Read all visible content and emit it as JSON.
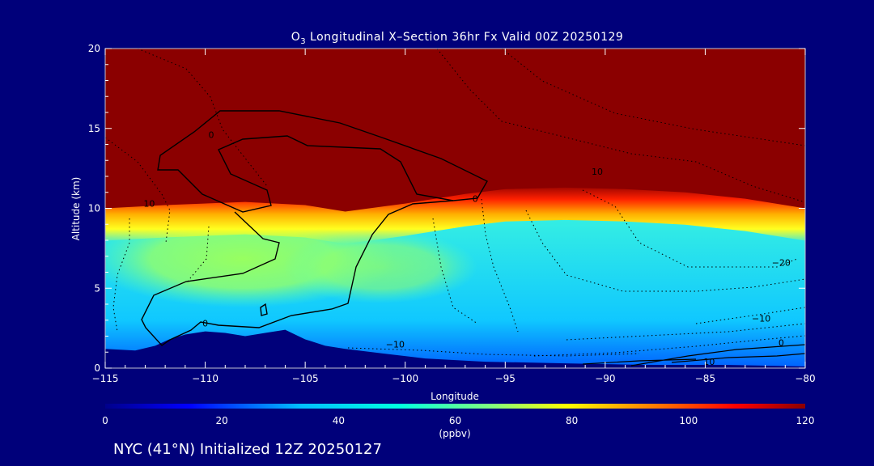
{
  "chart_data": {
    "type": "heatmap",
    "title_main": "O",
    "title_sub": "3",
    "title_rest": " Longitudinal X–Section 36hr  Fx Valid 00Z 20250129",
    "xlabel": "Longitude",
    "ylabel": "Altitude (km)",
    "xlim": [
      -115,
      -80
    ],
    "ylim": [
      0,
      20
    ],
    "x_ticks": [
      -115,
      -110,
      -105,
      -100,
      -95,
      -90,
      -85,
      -80
    ],
    "x_tick_labels": [
      "−115",
      "−110",
      "−105",
      "−100",
      "−95",
      "−90",
      "−85",
      "−80"
    ],
    "y_ticks": [
      0,
      5,
      10,
      15,
      20
    ],
    "y_tick_labels": [
      "0",
      "5",
      "10",
      "15",
      "20"
    ],
    "colorbar": {
      "min": 0,
      "max": 120,
      "ticks": [
        0,
        20,
        40,
        60,
        80,
        100,
        120
      ],
      "tick_labels": [
        "0",
        "20",
        "40",
        "60",
        "80",
        "100",
        "120"
      ],
      "unit": "(ppbv)"
    },
    "tropopause_km": [
      [
        -115,
        10.0
      ],
      [
        -112,
        10.2
      ],
      [
        -108,
        10.4
      ],
      [
        -105,
        10.2
      ],
      [
        -103,
        9.8
      ],
      [
        -100,
        10.3
      ],
      [
        -97,
        10.9
      ],
      [
        -95,
        11.2
      ],
      [
        -92,
        11.3
      ],
      [
        -89,
        11.2
      ],
      [
        -86,
        11.0
      ],
      [
        -83,
        10.6
      ],
      [
        -80,
        10.0
      ]
    ],
    "terrain_km": [
      [
        -115,
        1.2
      ],
      [
        -113.5,
        1.1
      ],
      [
        -112.5,
        1.4
      ],
      [
        -111.8,
        1.8
      ],
      [
        -111,
        2.1
      ],
      [
        -110,
        2.3
      ],
      [
        -109,
        2.2
      ],
      [
        -108,
        2.0
      ],
      [
        -107,
        2.2
      ],
      [
        -106,
        2.4
      ],
      [
        -105,
        1.8
      ],
      [
        -104,
        1.4
      ],
      [
        -103,
        1.2
      ],
      [
        -101,
        0.9
      ],
      [
        -99,
        0.6
      ],
      [
        -96,
        0.4
      ],
      [
        -92,
        0.3
      ],
      [
        -88,
        0.2
      ],
      [
        -84,
        0.2
      ],
      [
        -80,
        0.1
      ]
    ],
    "contour_labels": [
      {
        "text": "0",
        "x": -109.7,
        "y": 14.4
      },
      {
        "text": "0",
        "x": -96.5,
        "y": 10.4
      },
      {
        "text": "10",
        "x": -112.8,
        "y": 10.1
      },
      {
        "text": "10",
        "x": -90.4,
        "y": 12.1
      },
      {
        "text": "−20",
        "x": -81.2,
        "y": 6.4
      },
      {
        "text": "−10",
        "x": -82.2,
        "y": 2.9
      },
      {
        "text": "0",
        "x": -81.2,
        "y": 1.4
      },
      {
        "text": "−10",
        "x": -100.5,
        "y": 1.3
      },
      {
        "text": "0",
        "x": -110,
        "y": 2.6
      },
      {
        "text": "10",
        "x": -84.8,
        "y": 0.2
      }
    ]
  },
  "footer_text": "NYC (41°N) Initialized 12Z 20250127"
}
